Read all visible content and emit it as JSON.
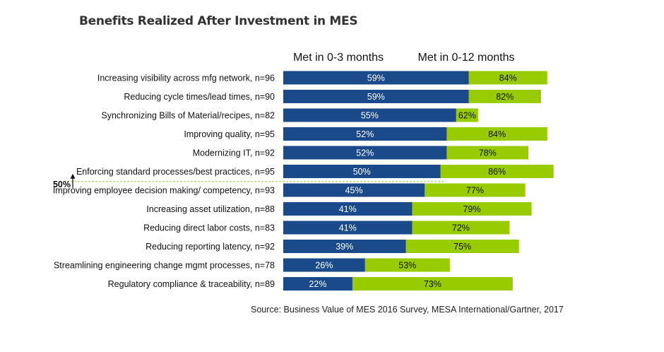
{
  "chart_data": {
    "type": "bar",
    "title": "Benefits Realized After Investment in MES",
    "categories": [
      "Increasing visibility across mfg network, n=96",
      "Reducing cycle times/lead times, n=90",
      "Synchronizing Bills of Material/recipes, n=82",
      "Improving quality, n=95",
      "Modernizing IT, n=92",
      "Enforcing standard processes/best practices, n=95",
      "Improving employee decision making/ competency, n=93",
      "Increasing asset utilization, n=88",
      "Reducing direct labor costs, n=83",
      "Reducing reporting latency, n=92",
      "Streamlining engineering change mgmt processes, n=78",
      "Regulatory compliance & traceability, n=89"
    ],
    "series": [
      {
        "name": "Met in 0-3 months",
        "color": "#1a4a8a",
        "values": [
          59,
          59,
          55,
          52,
          52,
          50,
          45,
          41,
          41,
          39,
          26,
          22
        ]
      },
      {
        "name": "Met in 0-12 months",
        "color": "#99cc00",
        "values": [
          84,
          82,
          62,
          84,
          78,
          86,
          77,
          79,
          72,
          75,
          53,
          73
        ]
      }
    ],
    "value_suffix": "%",
    "xlim": [
      0,
      100
    ],
    "threshold": {
      "label": "50%",
      "value": 50
    }
  },
  "source": "Source: Business Value of MES 2016 Survey, MESA International/Gartner, 2017"
}
